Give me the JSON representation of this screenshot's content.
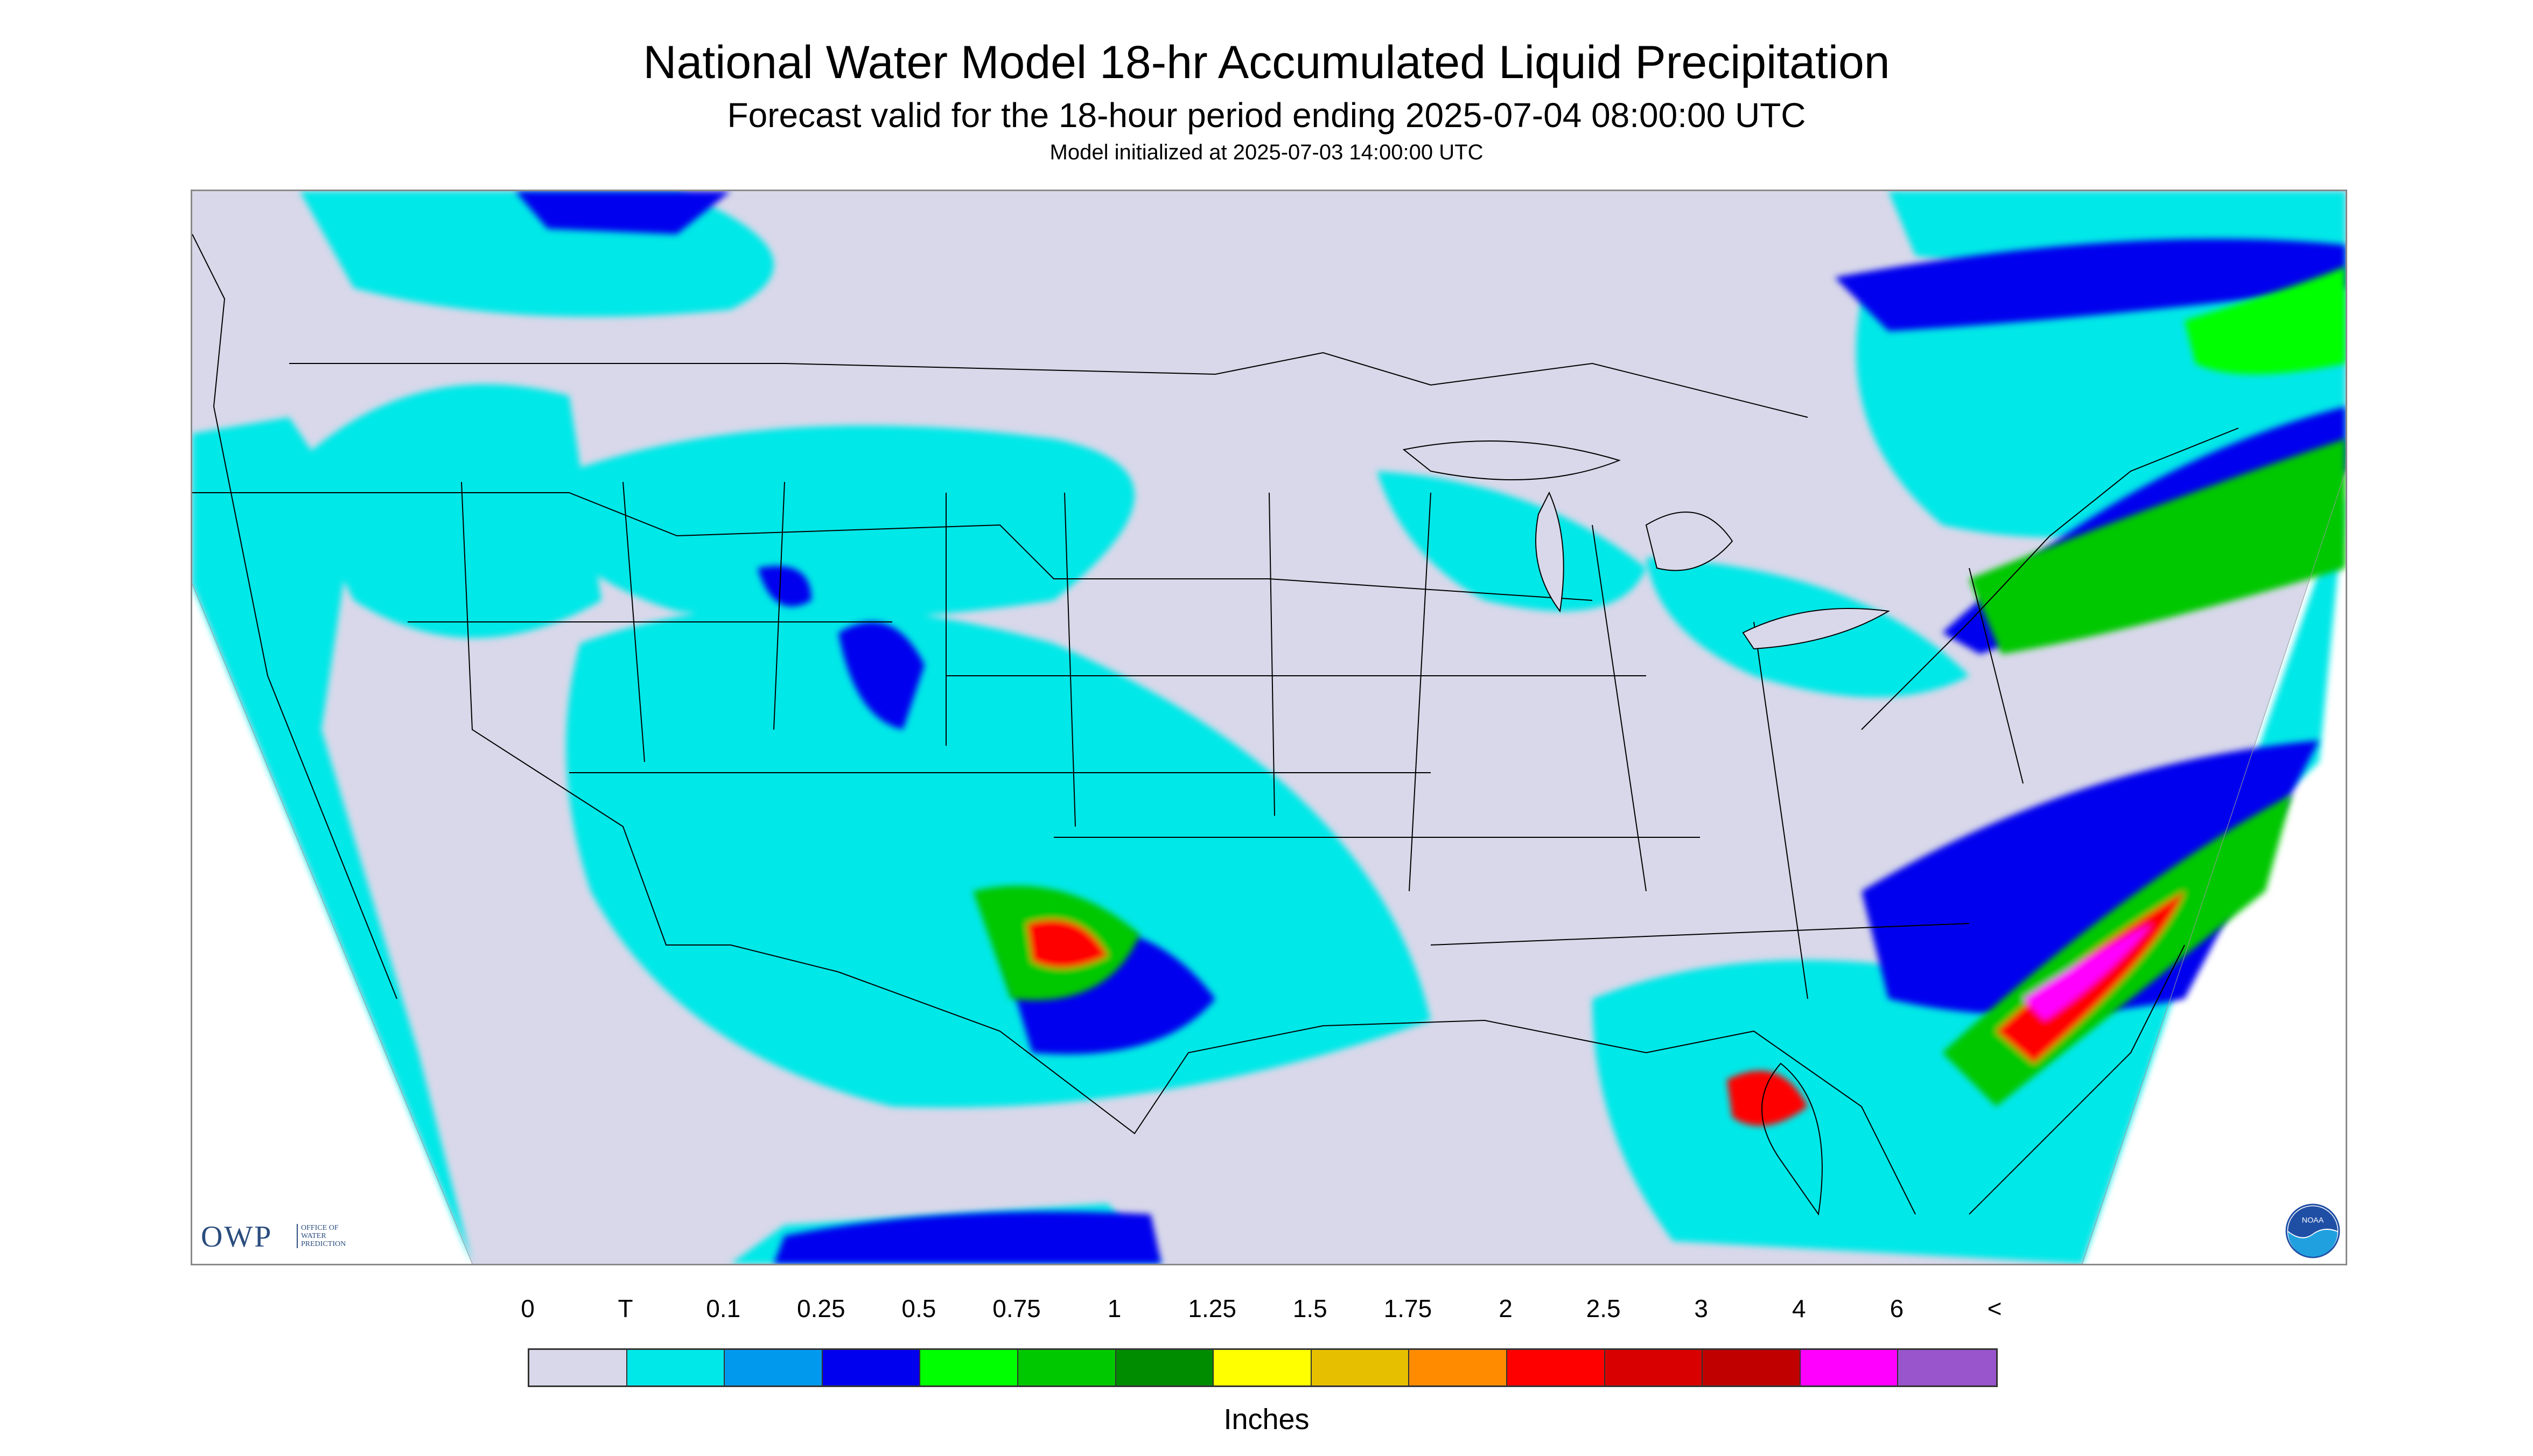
{
  "header": {
    "title": "National Water Model 18-hr Accumulated Liquid Precipitation",
    "subtitle": "Forecast valid for the 18-hour period ending 2025-07-04 08:00:00 UTC",
    "init": "Model initialized at 2025-07-03 14:00:00 UTC"
  },
  "logos": {
    "owp": "OWP",
    "owp_sub": [
      "OFFICE OF",
      "WATER",
      "PREDICTION"
    ],
    "noaa": "NOAA"
  },
  "legend": {
    "ticks": [
      "0",
      "T",
      "0.1",
      "0.25",
      "0.5",
      "0.75",
      "1",
      "1.25",
      "1.5",
      "1.75",
      "2",
      "2.5",
      "3",
      "4",
      "6",
      "<"
    ],
    "colors": [
      "#d8d8ea",
      "#00e8e8",
      "#0099ee",
      "#0000ee",
      "#00ff00",
      "#00c800",
      "#008c00",
      "#ffff00",
      "#e6bf00",
      "#ff8c00",
      "#ff0000",
      "#d80000",
      "#c00000",
      "#ff00ff",
      "#9955cc"
    ],
    "units": "Inches"
  }
}
